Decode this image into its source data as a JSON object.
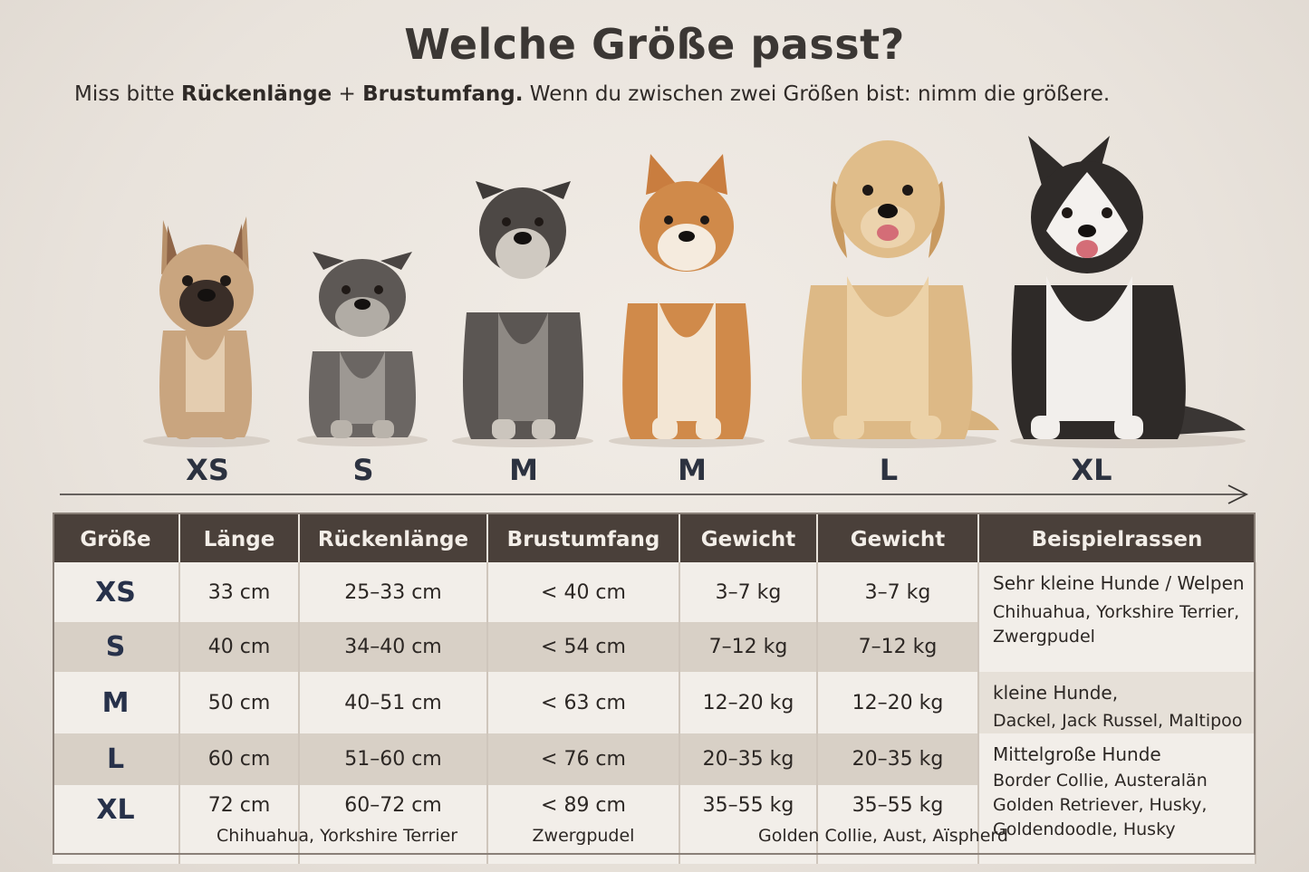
{
  "header": {
    "title": "Welche Größe passt?",
    "subtitle_pre": "Miss bitte ",
    "subtitle_bold1": "Rückenlänge",
    "subtitle_plus": " + ",
    "subtitle_bold2": "Brustumfang.",
    "subtitle_post": " Wenn du zwischen zwei Größen bist: nimm die größere."
  },
  "dogs": [
    {
      "label": "XS",
      "icon": "french-bulldog"
    },
    {
      "label": "S",
      "icon": "miniature-schnauzer"
    },
    {
      "label": "M",
      "icon": "schnauzer"
    },
    {
      "label": "M",
      "icon": "shiba-inu"
    },
    {
      "label": "L",
      "icon": "golden-retriever"
    },
    {
      "label": "XL",
      "icon": "siberian-husky"
    }
  ],
  "table": {
    "headers": [
      "Größe",
      "Länge",
      "Rückenlänge",
      "Brustumfang",
      "Gewicht",
      "Gewicht",
      "Beispielrassen"
    ],
    "rows": [
      {
        "size": "XS",
        "length": "33 cm",
        "back": "25–33 cm",
        "chest": "< 40 cm",
        "weight1": "3–7 kg",
        "weight2": "3–7 kg"
      },
      {
        "size": "S",
        "length": "40 cm",
        "back": "34–40 cm",
        "chest": "< 54 cm",
        "weight1": "7–12 kg",
        "weight2": "7–12 kg"
      },
      {
        "size": "M",
        "length": "50 cm",
        "back": "40–51 cm",
        "chest": "< 63 cm",
        "weight1": "12–20 kg",
        "weight2": "12–20 kg"
      },
      {
        "size": "L",
        "length": "60 cm",
        "back": "51–60 cm",
        "chest": "< 76 cm",
        "weight1": "20–35 kg",
        "weight2": "20–35 kg"
      },
      {
        "size": "XL",
        "length": "72 cm",
        "back": "60–72 cm",
        "chest": "< 89 cm",
        "weight1": "35–55 kg",
        "weight2": "35–55 kg"
      }
    ],
    "footer_notes": {
      "length_back": "Chihuahua, Yorkshire Terrier",
      "chest": "Zwergpudel",
      "weights": "Golden Collie, Aust, Aïspherd"
    },
    "breeds": {
      "group1_head": "Sehr kleine Hunde / Welpen",
      "group1_line1": "Chihuahua, Yorkshire Terrier,",
      "group1_line2": "Zwergpudel",
      "group2_head": "kleine Hunde,",
      "group2_line1": "Dackel, Jack Russel, Maltipoo",
      "group3_head": "Mittelgroße Hunde",
      "group3_line1": "Border Collie, Austeralän",
      "group3_line2": "Golden Retriever, Husky,",
      "group3_line3": "Goldendoodle, Husky"
    }
  },
  "colors": {
    "header_bg": "#4a403a",
    "row_light": "#f2eee9",
    "row_dark": "#d8d0c6",
    "size_text": "#27314a"
  }
}
